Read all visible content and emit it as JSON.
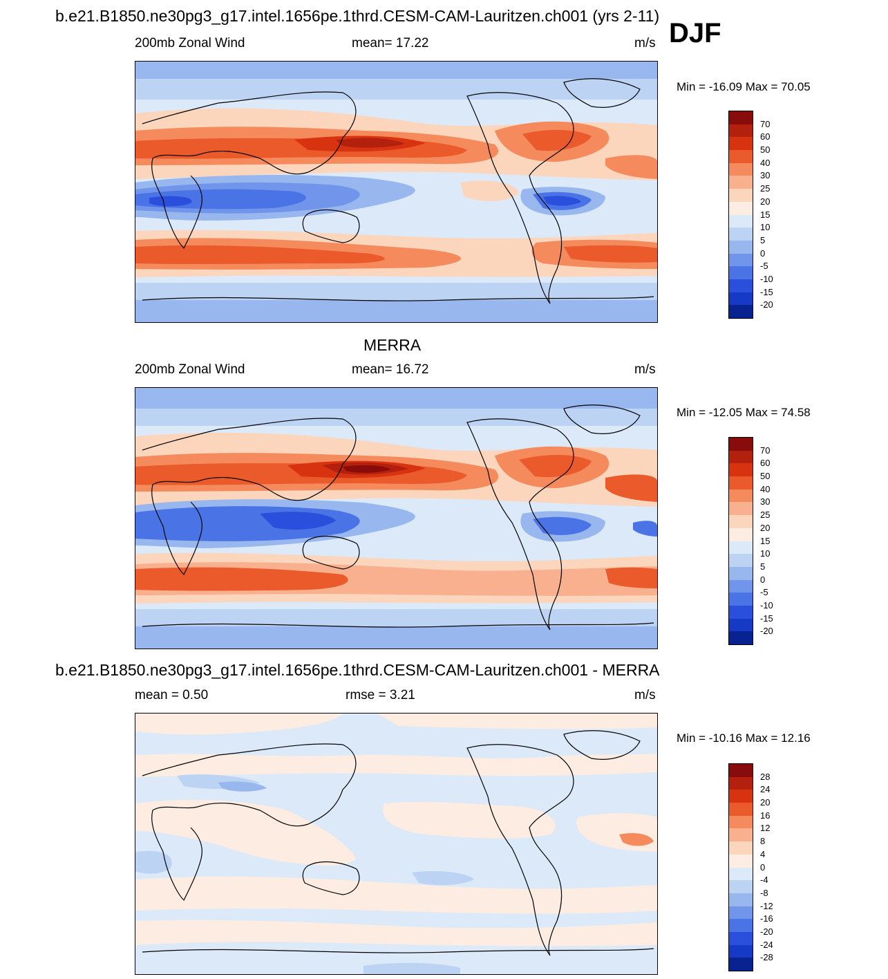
{
  "header": {
    "model_title": "b.e21.B1850.ne30pg3_g17.intel.1656pe.1thrd.CESM-CAM-Lauritzen.ch001 (yrs 2-11)",
    "season": "DJF"
  },
  "panels": [
    {
      "id": "model",
      "title": "",
      "left_label": "200mb Zonal Wind",
      "center_label": "mean=  17.22",
      "right_label": "m/s",
      "minmax": "Min = -16.09 Max =  70.05",
      "colorbar_labels": [
        "70",
        "60",
        "50",
        "40",
        "30",
        "25",
        "20",
        "15",
        "10",
        "5",
        "0",
        "-5",
        "-10",
        "-15",
        "-20"
      ],
      "colorbar_colors": [
        "#8a0b0b",
        "#b3200e",
        "#d83310",
        "#ea5a2a",
        "#f58a5c",
        "#f9b08e",
        "#fcd5bd",
        "#fdece1",
        "#dce9f8",
        "#bcd3f3",
        "#97b7ee",
        "#7095ea",
        "#4a73e6",
        "#2a4fdc",
        "#163ac5",
        "#08238f"
      ]
    },
    {
      "id": "obs",
      "title": "MERRA",
      "left_label": "200mb Zonal Wind",
      "center_label": "mean=  16.72",
      "right_label": "m/s",
      "minmax": "Min = -12.05 Max =  74.58",
      "colorbar_labels": [
        "70",
        "60",
        "50",
        "40",
        "30",
        "25",
        "20",
        "15",
        "10",
        "5",
        "0",
        "-5",
        "-10",
        "-15",
        "-20"
      ],
      "colorbar_colors": [
        "#8a0b0b",
        "#b3200e",
        "#d83310",
        "#ea5a2a",
        "#f58a5c",
        "#f9b08e",
        "#fcd5bd",
        "#fdece1",
        "#dce9f8",
        "#bcd3f3",
        "#97b7ee",
        "#7095ea",
        "#4a73e6",
        "#2a4fdc",
        "#163ac5",
        "#08238f"
      ]
    },
    {
      "id": "diff",
      "title": "b.e21.B1850.ne30pg3_g17.intel.1656pe.1thrd.CESM-CAM-Lauritzen.ch001 - MERRA",
      "left_label": "mean =   0.50",
      "center_label": "rmse =   3.21",
      "right_label": "m/s",
      "minmax": "Min = -10.16 Max =  12.16",
      "colorbar_labels": [
        "28",
        "24",
        "20",
        "16",
        "12",
        "8",
        "4",
        "0",
        "-4",
        "-8",
        "-12",
        "-16",
        "-20",
        "-24",
        "-28"
      ],
      "colorbar_colors": [
        "#8a0b0b",
        "#b3200e",
        "#d83310",
        "#ea5a2a",
        "#f58a5c",
        "#f9b08e",
        "#fcd5bd",
        "#fdece1",
        "#dce9f8",
        "#bcd3f3",
        "#97b7ee",
        "#7095ea",
        "#4a73e6",
        "#2a4fdc",
        "#163ac5",
        "#08238f"
      ]
    }
  ]
}
